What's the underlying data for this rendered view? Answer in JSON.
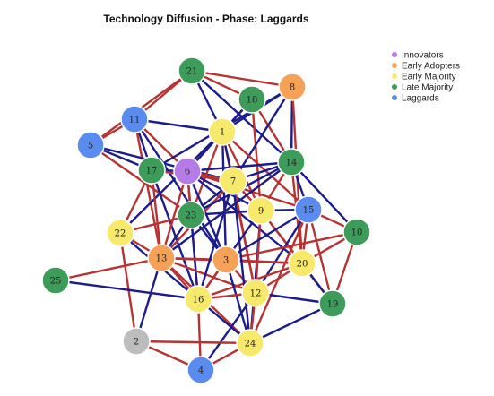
{
  "title": "Technology Diffusion - Phase: Laggards",
  "legend": [
    {
      "label": "Innovators",
      "color": "#b57be8"
    },
    {
      "label": "Early Adopters",
      "color": "#f5a258"
    },
    {
      "label": "Early Majority",
      "color": "#f7e96b"
    },
    {
      "label": "Late Majority",
      "color": "#3e9c5a"
    },
    {
      "label": "Laggards",
      "color": "#5a8cf0"
    }
  ],
  "colors": {
    "innovators": "#b57be8",
    "early_adopters": "#f5a258",
    "early_majority": "#f7e96b",
    "late_majority": "#3e9c5a",
    "laggards": "#5a8cf0",
    "unassigned": "#bdbdbd",
    "edge_blue": "#1c1c8c",
    "edge_red": "#b83232"
  },
  "nodes": [
    {
      "id": "1",
      "group": "early_majority"
    },
    {
      "id": "2",
      "group": "unassigned"
    },
    {
      "id": "3",
      "group": "early_adopters"
    },
    {
      "id": "4",
      "group": "laggards"
    },
    {
      "id": "5",
      "group": "laggards"
    },
    {
      "id": "6",
      "group": "innovators"
    },
    {
      "id": "7",
      "group": "early_majority"
    },
    {
      "id": "8",
      "group": "early_adopters"
    },
    {
      "id": "9",
      "group": "early_majority"
    },
    {
      "id": "10",
      "group": "late_majority"
    },
    {
      "id": "11",
      "group": "laggards"
    },
    {
      "id": "12",
      "group": "early_majority"
    },
    {
      "id": "13",
      "group": "early_adopters"
    },
    {
      "id": "14",
      "group": "late_majority"
    },
    {
      "id": "15",
      "group": "laggards"
    },
    {
      "id": "16",
      "group": "early_majority"
    },
    {
      "id": "17",
      "group": "late_majority"
    },
    {
      "id": "18",
      "group": "late_majority"
    },
    {
      "id": "19",
      "group": "late_majority"
    },
    {
      "id": "20",
      "group": "early_majority"
    },
    {
      "id": "21",
      "group": "late_majority"
    },
    {
      "id": "22",
      "group": "early_majority"
    },
    {
      "id": "23",
      "group": "late_majority"
    },
    {
      "id": "24",
      "group": "early_majority"
    },
    {
      "id": "25",
      "group": "late_majority"
    }
  ],
  "edges": [
    {
      "s": "21",
      "t": "18",
      "c": "red"
    },
    {
      "s": "21",
      "t": "11",
      "c": "red"
    },
    {
      "s": "21",
      "t": "8",
      "c": "red"
    },
    {
      "s": "21",
      "t": "1",
      "c": "blue"
    },
    {
      "s": "21",
      "t": "14",
      "c": "blue"
    },
    {
      "s": "21",
      "t": "5",
      "c": "red"
    },
    {
      "s": "11",
      "t": "5",
      "c": "red"
    },
    {
      "s": "11",
      "t": "1",
      "c": "blue"
    },
    {
      "s": "11",
      "t": "17",
      "c": "blue"
    },
    {
      "s": "11",
      "t": "6",
      "c": "red"
    },
    {
      "s": "11",
      "t": "13",
      "c": "red"
    },
    {
      "s": "11",
      "t": "3",
      "c": "blue"
    },
    {
      "s": "5",
      "t": "7",
      "c": "blue"
    },
    {
      "s": "5",
      "t": "23",
      "c": "red"
    },
    {
      "s": "5",
      "t": "17",
      "c": "blue"
    },
    {
      "s": "18",
      "t": "1",
      "c": "blue"
    },
    {
      "s": "18",
      "t": "14",
      "c": "red"
    },
    {
      "s": "18",
      "t": "9",
      "c": "red"
    },
    {
      "s": "18",
      "t": "6",
      "c": "blue"
    },
    {
      "s": "8",
      "t": "1",
      "c": "blue"
    },
    {
      "s": "8",
      "t": "14",
      "c": "blue"
    },
    {
      "s": "8",
      "t": "17",
      "c": "blue"
    },
    {
      "s": "8",
      "t": "20",
      "c": "red"
    },
    {
      "s": "8",
      "t": "7",
      "c": "blue"
    },
    {
      "s": "1",
      "t": "6",
      "c": "blue"
    },
    {
      "s": "1",
      "t": "9",
      "c": "red"
    },
    {
      "s": "1",
      "t": "23",
      "c": "red"
    },
    {
      "s": "1",
      "t": "22",
      "c": "blue"
    },
    {
      "s": "1",
      "t": "15",
      "c": "red"
    },
    {
      "s": "1",
      "t": "12",
      "c": "red"
    },
    {
      "s": "1",
      "t": "3",
      "c": "blue"
    },
    {
      "s": "17",
      "t": "6",
      "c": "blue"
    },
    {
      "s": "17",
      "t": "7",
      "c": "red"
    },
    {
      "s": "17",
      "t": "22",
      "c": "red"
    },
    {
      "s": "17",
      "t": "13",
      "c": "red"
    },
    {
      "s": "17",
      "t": "16",
      "c": "blue"
    },
    {
      "s": "6",
      "t": "14",
      "c": "blue"
    },
    {
      "s": "6",
      "t": "7",
      "c": "red"
    },
    {
      "s": "6",
      "t": "9",
      "c": "blue"
    },
    {
      "s": "6",
      "t": "23",
      "c": "blue"
    },
    {
      "s": "6",
      "t": "13",
      "c": "red"
    },
    {
      "s": "6",
      "t": "16",
      "c": "red"
    },
    {
      "s": "6",
      "t": "15",
      "c": "red"
    },
    {
      "s": "6",
      "t": "20",
      "c": "blue"
    },
    {
      "s": "6",
      "t": "3",
      "c": "blue"
    },
    {
      "s": "7",
      "t": "14",
      "c": "blue"
    },
    {
      "s": "7",
      "t": "23",
      "c": "blue"
    },
    {
      "s": "7",
      "t": "9",
      "c": "red"
    },
    {
      "s": "7",
      "t": "12",
      "c": "red"
    },
    {
      "s": "7",
      "t": "13",
      "c": "red"
    },
    {
      "s": "14",
      "t": "10",
      "c": "blue"
    },
    {
      "s": "14",
      "t": "15",
      "c": "blue"
    },
    {
      "s": "14",
      "t": "9",
      "c": "red"
    },
    {
      "s": "14",
      "t": "23",
      "c": "blue"
    },
    {
      "s": "14",
      "t": "20",
      "c": "red"
    },
    {
      "s": "14",
      "t": "13",
      "c": "blue"
    },
    {
      "s": "9",
      "t": "15",
      "c": "blue"
    },
    {
      "s": "9",
      "t": "20",
      "c": "red"
    },
    {
      "s": "9",
      "t": "24",
      "c": "blue"
    },
    {
      "s": "9",
      "t": "19",
      "c": "red"
    },
    {
      "s": "9",
      "t": "12",
      "c": "red"
    },
    {
      "s": "9",
      "t": "16",
      "c": "blue"
    },
    {
      "s": "15",
      "t": "10",
      "c": "red"
    },
    {
      "s": "15",
      "t": "20",
      "c": "red"
    },
    {
      "s": "15",
      "t": "19",
      "c": "red"
    },
    {
      "s": "15",
      "t": "12",
      "c": "blue"
    },
    {
      "s": "15",
      "t": "3",
      "c": "blue"
    },
    {
      "s": "15",
      "t": "24",
      "c": "red"
    },
    {
      "s": "10",
      "t": "20",
      "c": "red"
    },
    {
      "s": "10",
      "t": "19",
      "c": "red"
    },
    {
      "s": "10",
      "t": "3",
      "c": "red"
    },
    {
      "s": "20",
      "t": "19",
      "c": "blue"
    },
    {
      "s": "20",
      "t": "12",
      "c": "red"
    },
    {
      "s": "20",
      "t": "13",
      "c": "red"
    },
    {
      "s": "20",
      "t": "16",
      "c": "red"
    },
    {
      "s": "23",
      "t": "22",
      "c": "red"
    },
    {
      "s": "23",
      "t": "13",
      "c": "blue"
    },
    {
      "s": "23",
      "t": "3",
      "c": "blue"
    },
    {
      "s": "23",
      "t": "16",
      "c": "blue"
    },
    {
      "s": "22",
      "t": "13",
      "c": "red"
    },
    {
      "s": "22",
      "t": "16",
      "c": "blue"
    },
    {
      "s": "22",
      "t": "2",
      "c": "red"
    },
    {
      "s": "13",
      "t": "3",
      "c": "red"
    },
    {
      "s": "13",
      "t": "16",
      "c": "red"
    },
    {
      "s": "13",
      "t": "12",
      "c": "red"
    },
    {
      "s": "13",
      "t": "25",
      "c": "red"
    },
    {
      "s": "13",
      "t": "24",
      "c": "red"
    },
    {
      "s": "13",
      "t": "2",
      "c": "blue"
    },
    {
      "s": "3",
      "t": "16",
      "c": "red"
    },
    {
      "s": "3",
      "t": "12",
      "c": "red"
    },
    {
      "s": "3",
      "t": "20",
      "c": "red"
    },
    {
      "s": "3",
      "t": "24",
      "c": "blue"
    },
    {
      "s": "16",
      "t": "12",
      "c": "red"
    },
    {
      "s": "16",
      "t": "24",
      "c": "blue"
    },
    {
      "s": "16",
      "t": "4",
      "c": "red"
    },
    {
      "s": "16",
      "t": "25",
      "c": "blue"
    },
    {
      "s": "12",
      "t": "24",
      "c": "red"
    },
    {
      "s": "12",
      "t": "19",
      "c": "blue"
    },
    {
      "s": "12",
      "t": "4",
      "c": "blue"
    },
    {
      "s": "2",
      "t": "24",
      "c": "red"
    },
    {
      "s": "2",
      "t": "4",
      "c": "red"
    },
    {
      "s": "24",
      "t": "4",
      "c": "red"
    },
    {
      "s": "7",
      "t": "1",
      "c": "blue"
    },
    {
      "s": "9",
      "t": "23",
      "c": "blue"
    },
    {
      "s": "7",
      "t": "16",
      "c": "blue"
    },
    {
      "s": "19",
      "t": "24",
      "c": "blue"
    },
    {
      "s": "7",
      "t": "24",
      "c": "blue"
    }
  ]
}
